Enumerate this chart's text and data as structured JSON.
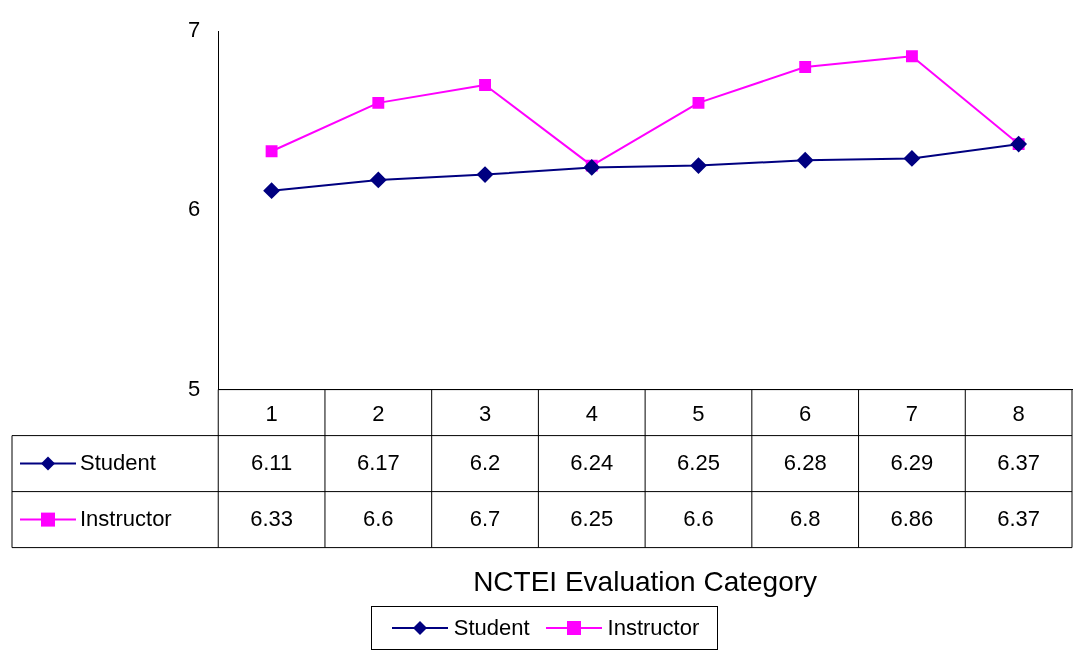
{
  "chart_data": {
    "type": "line",
    "annotations": [
      "NCTEI Evaluation Category"
    ],
    "categories": [
      "1",
      "2",
      "3",
      "4",
      "5",
      "6",
      "7",
      "8"
    ],
    "series": [
      {
        "name": "Student",
        "color": "#000080",
        "marker": "diamond",
        "values": [
          6.11,
          6.17,
          6.2,
          6.24,
          6.25,
          6.28,
          6.29,
          6.37
        ]
      },
      {
        "name": "Instructor",
        "color": "#ff00ff",
        "marker": "square",
        "values": [
          6.33,
          6.6,
          6.7,
          6.25,
          6.6,
          6.8,
          6.86,
          6.37
        ]
      }
    ],
    "ylim": [
      5,
      7
    ],
    "yticks": [
      5,
      6,
      7
    ],
    "grid": false,
    "legend": "bottom",
    "data_labels": true
  }
}
